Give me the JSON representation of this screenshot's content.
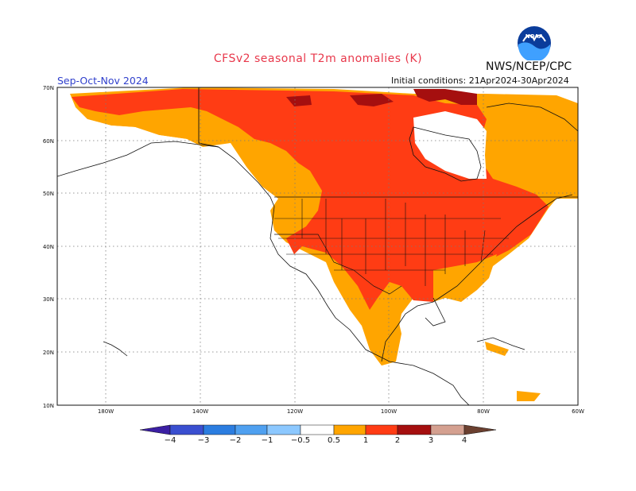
{
  "title": "CFSv2 seasonal T2m anomalies (K)",
  "agency": "NWS/NCEP/CPC",
  "season": "Sep-Oct-Nov 2024",
  "initial_conditions": "Initial conditions: 21Apr2024-30Apr2024",
  "logo_text": "NOAA",
  "lat_labels": [
    "70N",
    "60N",
    "50N",
    "40N",
    "30N",
    "20N",
    "10N"
  ],
  "lon_labels": [
    "180W",
    "140W",
    "120W",
    "100W",
    "80W",
    "60W"
  ],
  "colorbar": {
    "labels": [
      "−4",
      "−3",
      "−2",
      "−1",
      "−0.5",
      "0.5",
      "1",
      "2",
      "3",
      "4"
    ],
    "colors": [
      "#3b1fa3",
      "#3a4fd0",
      "#2b7de0",
      "#4fa0f0",
      "#8cc8ff",
      "#ffffff",
      "#ffa500",
      "#ff3c14",
      "#a50f0f",
      "#d4a090",
      "#6b4030"
    ]
  },
  "legend_categories": [
    {
      "range": "0.5-1",
      "color": "#ffa500"
    },
    {
      "range": "1-2",
      "color": "#ff3c14"
    },
    {
      "range": "2-3",
      "color": "#a50f0f"
    }
  ]
}
